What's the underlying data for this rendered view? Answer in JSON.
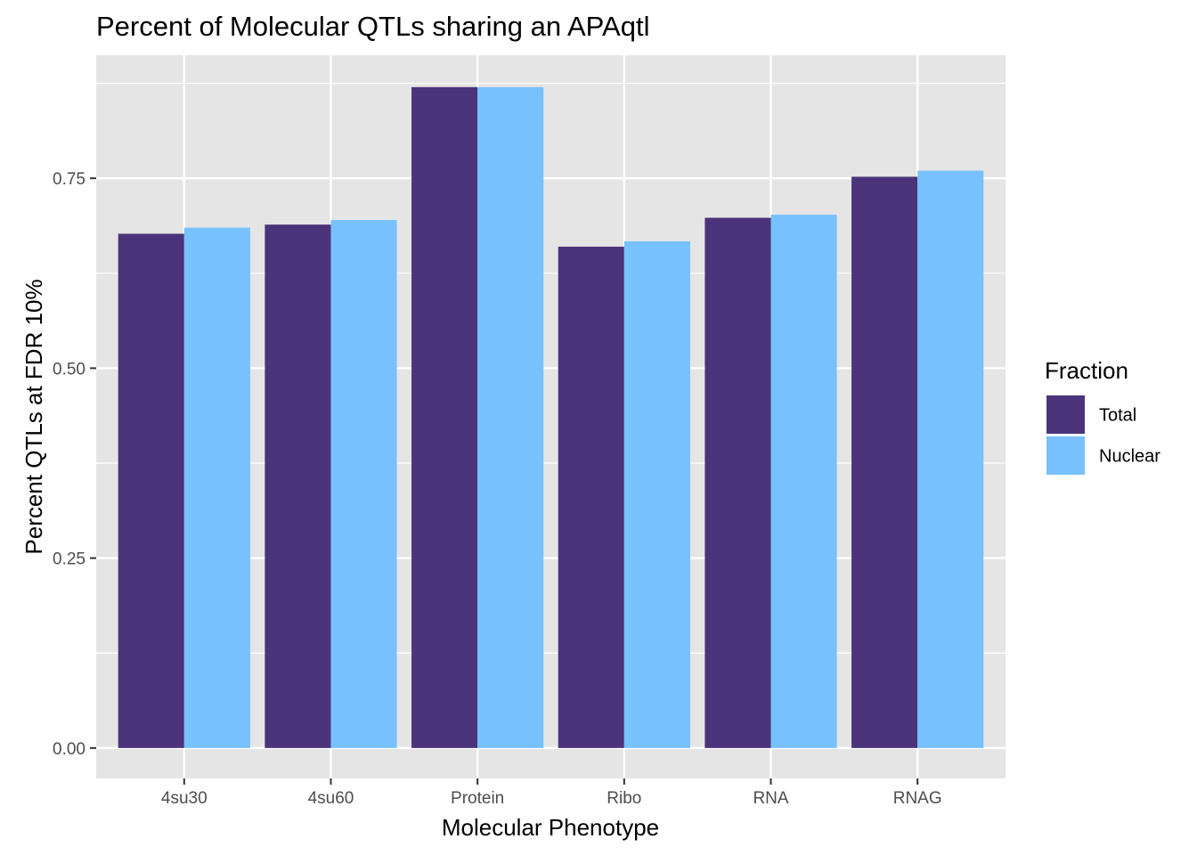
{
  "chart_data": {
    "type": "bar",
    "title": "Percent of Molecular QTLs sharing an APAqtl",
    "xlabel": "Molecular Phenotype",
    "ylabel": "Percent QTLs at FDR 10%",
    "categories": [
      "4su30",
      "4su60",
      "Protein",
      "Ribo",
      "RNA",
      "RNAG"
    ],
    "series": [
      {
        "name": "Total",
        "color": "#4B3479",
        "values": [
          0.677,
          0.689,
          0.87,
          0.66,
          0.698,
          0.752
        ]
      },
      {
        "name": "Nuclear",
        "color": "#77C1FE",
        "values": [
          0.685,
          0.695,
          0.87,
          0.667,
          0.702,
          0.76
        ]
      }
    ],
    "ylim": [
      -0.04,
      0.912
    ],
    "yticks": [
      0.0,
      0.25,
      0.5,
      0.75
    ],
    "ytick_labels": [
      "0.00",
      "0.25",
      "0.50",
      "0.75"
    ],
    "legend": {
      "title": "Fraction",
      "position": "right"
    },
    "grid": true,
    "panel_background": "#E5E5E5",
    "grid_color": "#FFFFFF"
  }
}
